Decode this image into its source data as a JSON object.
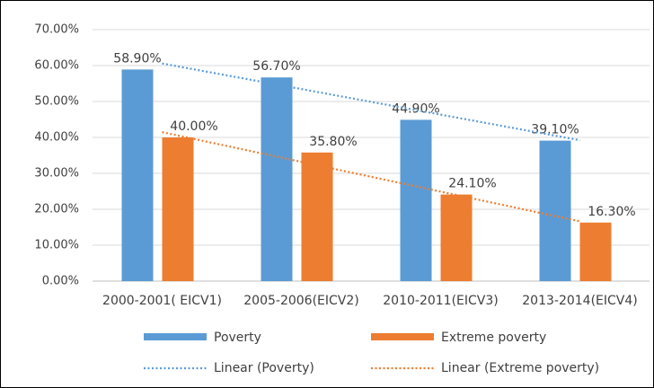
{
  "chart_data": {
    "type": "bar",
    "categories": [
      "2000-2001( EICV1)",
      "2005-2006(EICV2)",
      "2010-2011(EICV3)",
      "2013-2014(EICV4)"
    ],
    "series": [
      {
        "name": "Poverty",
        "color": "#5b9bd5",
        "values": [
          58.9,
          56.7,
          44.9,
          39.1
        ],
        "value_labels": [
          "58.90%",
          "56.70%",
          "44.90%",
          "39.10%"
        ],
        "trendline": "linear",
        "trendline_name": "Linear (Poverty)"
      },
      {
        "name": "Extreme poverty",
        "color": "#ed7d31",
        "values": [
          40.0,
          35.8,
          24.1,
          16.3
        ],
        "value_labels": [
          "40.00%",
          "35.80%",
          "24.10%",
          "16.30%"
        ],
        "trendline": "linear",
        "trendline_name": "Linear (Extreme poverty)"
      }
    ],
    "ylim": [
      0,
      70
    ],
    "yticks": [
      {
        "value": 0,
        "label": "0.00%"
      },
      {
        "value": 10,
        "label": "10.00%"
      },
      {
        "value": 20,
        "label": "20.00%"
      },
      {
        "value": 30,
        "label": "30.00%"
      },
      {
        "value": 40,
        "label": "40.00%"
      },
      {
        "value": 50,
        "label": "50.00%"
      },
      {
        "value": 60,
        "label": "60.00%"
      },
      {
        "value": 70,
        "label": "70.00%"
      }
    ],
    "grid": true,
    "legend": "bottom"
  }
}
